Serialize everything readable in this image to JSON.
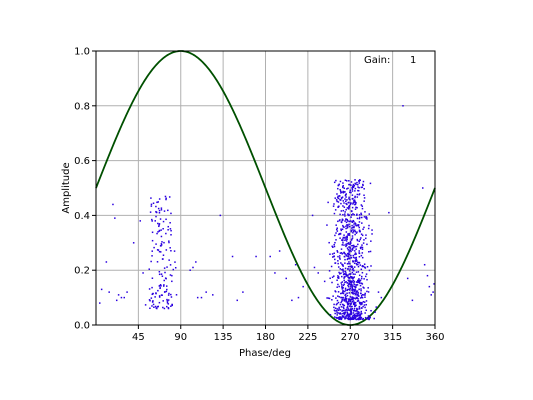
{
  "chart_data": {
    "type": "scatter",
    "title": "",
    "xlabel": "Phase/deg",
    "ylabel": "Amplitude",
    "xlim": [
      0,
      360
    ],
    "ylim": [
      0.0,
      1.0
    ],
    "x_ticks": [
      45,
      90,
      135,
      180,
      225,
      270,
      315,
      360
    ],
    "y_ticks": [
      0.0,
      0.2,
      0.4,
      0.6,
      0.8,
      1.0
    ],
    "x_tick_labels": [
      "45",
      "90",
      "135",
      "180",
      "225",
      "270",
      "315",
      "360"
    ],
    "y_tick_labels": [
      "0.0",
      "0.2",
      "0.4",
      "0.6",
      "0.8",
      "1.0"
    ],
    "grid": true,
    "gain": {
      "label": "Gain:",
      "value": "1"
    },
    "curve": {
      "type": "line",
      "function": "y = 0.5 + 0.5*sin(x deg)",
      "color": "#005000"
    },
    "points_color": "#2a00e0",
    "clusters": [
      {
        "x_center": 270,
        "x_spread": 17,
        "y_min": 0.02,
        "y_max": 0.53,
        "count": 1000
      },
      {
        "x_center": 70,
        "x_spread": 13,
        "y_min": 0.06,
        "y_max": 0.47,
        "count": 160
      }
    ],
    "sparse_points": [
      [
        4,
        0.08
      ],
      [
        6,
        0.13
      ],
      [
        11,
        0.23
      ],
      [
        14,
        0.12
      ],
      [
        18,
        0.44
      ],
      [
        20,
        0.39
      ],
      [
        22,
        0.09
      ],
      [
        24,
        0.11
      ],
      [
        27,
        0.1
      ],
      [
        30,
        0.1
      ],
      [
        33,
        0.12
      ],
      [
        40,
        0.3
      ],
      [
        47,
        0.38
      ],
      [
        50,
        0.19
      ],
      [
        100,
        0.2
      ],
      [
        103,
        0.21
      ],
      [
        106,
        0.23
      ],
      [
        108,
        0.1
      ],
      [
        112,
        0.1
      ],
      [
        117,
        0.12
      ],
      [
        124,
        0.11
      ],
      [
        132,
        0.4
      ],
      [
        145,
        0.25
      ],
      [
        150,
        0.09
      ],
      [
        156,
        0.12
      ],
      [
        170,
        0.25
      ],
      [
        185,
        0.25
      ],
      [
        190,
        0.19
      ],
      [
        195,
        0.27
      ],
      [
        202,
        0.17
      ],
      [
        208,
        0.09
      ],
      [
        212,
        0.22
      ],
      [
        215,
        0.1
      ],
      [
        220,
        0.14
      ],
      [
        230,
        0.4
      ],
      [
        232,
        0.21
      ],
      [
        236,
        0.19
      ],
      [
        300,
        0.12
      ],
      [
        303,
        0.1
      ],
      [
        311,
        0.41
      ],
      [
        326,
        0.8
      ],
      [
        331,
        0.17
      ],
      [
        336,
        0.09
      ],
      [
        347,
        0.5
      ],
      [
        349,
        0.22
      ],
      [
        352,
        0.18
      ],
      [
        354,
        0.14
      ],
      [
        356,
        0.11
      ],
      [
        358,
        0.12
      ],
      [
        359,
        0.15
      ]
    ]
  }
}
